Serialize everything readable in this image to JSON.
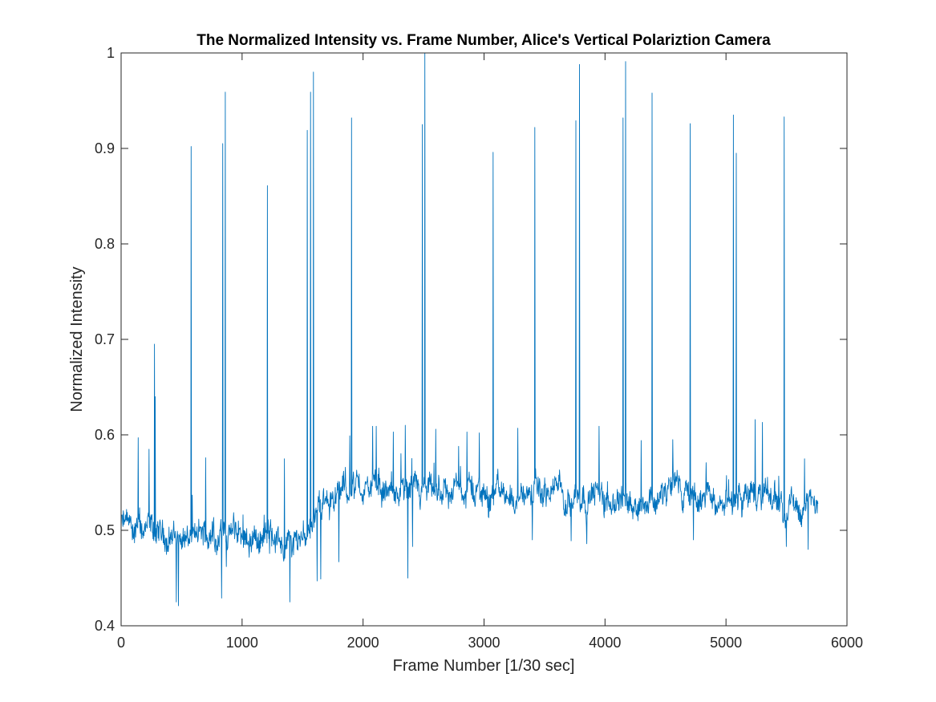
{
  "chart_data": {
    "type": "line",
    "title": "The Normalized Intensity vs. Frame Number, Alice's Vertical Polariztion Camera",
    "xlabel": "Frame Number [1/30 sec]",
    "ylabel": "Normalized Intensity",
    "xlim": [
      0,
      6000
    ],
    "ylim": [
      0.4,
      1.0
    ],
    "xticks": [
      0,
      1000,
      2000,
      3000,
      4000,
      5000,
      6000
    ],
    "xtick_labels": [
      "0",
      "1000",
      "2000",
      "3000",
      "4000",
      "5000",
      "6000"
    ],
    "yticks": [
      0.4,
      0.5,
      0.6,
      0.7,
      0.8,
      0.9,
      1.0
    ],
    "ytick_labels": [
      "0.4",
      "0.5",
      "0.6",
      "0.7",
      "0.8",
      "0.9",
      "1"
    ],
    "grid": false,
    "line_color": "#0072BD",
    "series": [
      {
        "name": "Normalized Intensity",
        "frame_range": [
          0,
          5760
        ],
        "baseline": [
          [
            0,
            0.505
          ],
          [
            150,
            0.5
          ],
          [
            300,
            0.492
          ],
          [
            420,
            0.495
          ],
          [
            600,
            0.49
          ],
          [
            800,
            0.497
          ],
          [
            1000,
            0.496
          ],
          [
            1200,
            0.492
          ],
          [
            1400,
            0.486
          ],
          [
            1500,
            0.497
          ],
          [
            1650,
            0.527
          ],
          [
            1800,
            0.54
          ],
          [
            2000,
            0.545
          ],
          [
            2200,
            0.54
          ],
          [
            2400,
            0.534
          ],
          [
            2600,
            0.537
          ],
          [
            2800,
            0.545
          ],
          [
            3000,
            0.54
          ],
          [
            3200,
            0.537
          ],
          [
            3400,
            0.537
          ],
          [
            3600,
            0.54
          ],
          [
            3800,
            0.539
          ],
          [
            4000,
            0.537
          ],
          [
            4200,
            0.533
          ],
          [
            4400,
            0.534
          ],
          [
            4600,
            0.542
          ],
          [
            4800,
            0.528
          ],
          [
            5000,
            0.534
          ],
          [
            5200,
            0.536
          ],
          [
            5400,
            0.534
          ],
          [
            5600,
            0.525
          ],
          [
            5760,
            0.523
          ]
        ],
        "spikes": [
          [
            140,
            0.597
          ],
          [
            230,
            0.585
          ],
          [
            275,
            0.695
          ],
          [
            282,
            0.64
          ],
          [
            580,
            0.902
          ],
          [
            700,
            0.576
          ],
          [
            840,
            0.905
          ],
          [
            860,
            0.959
          ],
          [
            1210,
            0.861
          ],
          [
            1350,
            0.575
          ],
          [
            1540,
            0.919
          ],
          [
            1565,
            0.959
          ],
          [
            1590,
            0.98
          ],
          [
            1890,
            0.599
          ],
          [
            1905,
            0.932
          ],
          [
            2080,
            0.609
          ],
          [
            2110,
            0.609
          ],
          [
            2250,
            0.603
          ],
          [
            2350,
            0.61
          ],
          [
            2490,
            0.925
          ],
          [
            2510,
            1.0
          ],
          [
            2600,
            0.606
          ],
          [
            2790,
            0.588
          ],
          [
            2860,
            0.603
          ],
          [
            2960,
            0.602
          ],
          [
            3075,
            0.896
          ],
          [
            3280,
            0.607
          ],
          [
            3420,
            0.922
          ],
          [
            3760,
            0.929
          ],
          [
            3790,
            0.988
          ],
          [
            3950,
            0.609
          ],
          [
            4150,
            0.932
          ],
          [
            4170,
            0.991
          ],
          [
            4300,
            0.594
          ],
          [
            4390,
            0.958
          ],
          [
            4560,
            0.595
          ],
          [
            4705,
            0.926
          ],
          [
            5060,
            0.935
          ],
          [
            5085,
            0.895
          ],
          [
            5240,
            0.616
          ],
          [
            5300,
            0.613
          ],
          [
            5480,
            0.933
          ],
          [
            5650,
            0.575
          ]
        ],
        "dips": [
          [
            455,
            0.425
          ],
          [
            475,
            0.421
          ],
          [
            830,
            0.429
          ],
          [
            870,
            0.462
          ],
          [
            1395,
            0.425
          ],
          [
            1620,
            0.447
          ],
          [
            1650,
            0.449
          ],
          [
            1800,
            0.467
          ],
          [
            2370,
            0.45
          ],
          [
            2410,
            0.483
          ],
          [
            3400,
            0.49
          ],
          [
            3720,
            0.489
          ],
          [
            3850,
            0.486
          ],
          [
            4730,
            0.49
          ],
          [
            5500,
            0.483
          ],
          [
            5680,
            0.48
          ]
        ]
      }
    ]
  }
}
